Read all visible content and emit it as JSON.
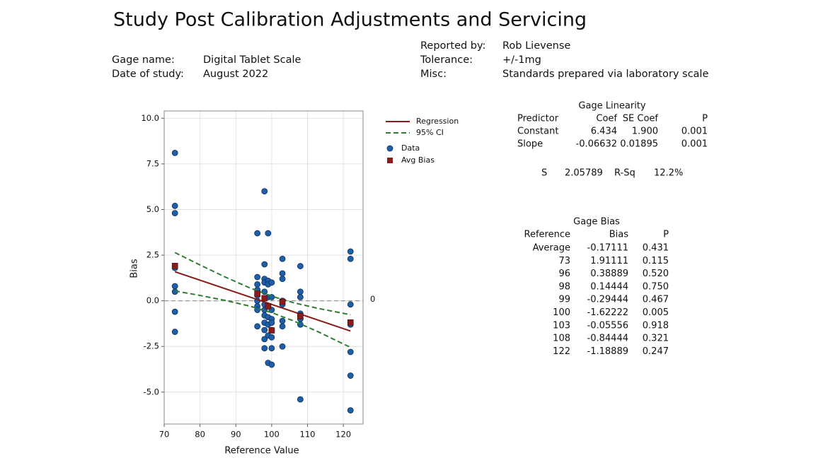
{
  "header": {
    "title": "Study Post Calibration Adjustments and Servicing",
    "fields": [
      {
        "label": "Gage name:",
        "value": "Digital Tablet Scale"
      },
      {
        "label": "Date of study:",
        "value": "August 2022"
      },
      {
        "label": "Reported by:",
        "value": "Rob Lievense"
      },
      {
        "label": "Tolerance:",
        "value": "+/-1mg"
      },
      {
        "label": "Misc:",
        "value": "Standards prepared via laboratory scale"
      }
    ]
  },
  "chart_data": {
    "type": "scatter",
    "x_label": "Reference Value",
    "y_label": "Bias",
    "xlim": [
      70,
      125.5
    ],
    "ylim": [
      -6.75,
      10.4
    ],
    "xticks": [
      70,
      80,
      90,
      100,
      110,
      120
    ],
    "yticks": [
      {
        "value": 10,
        "label": "10.0"
      },
      7.5,
      {
        "value": 5,
        "label": "5.0"
      },
      2.5,
      {
        "value": 0,
        "label": "0.0"
      },
      -2.5,
      {
        "value": -5,
        "label": "-5.0"
      }
    ],
    "grid": true,
    "legend": "right",
    "reference_line": 0,
    "series": [
      {
        "name": "Regression",
        "mark": "line",
        "color": "#8b1a1a",
        "x": [
          73,
          122
        ],
        "values": [
          1.593,
          -1.657
        ]
      },
      {
        "name": "95% CI",
        "mark": "dashed-band",
        "color": "#2e7d32",
        "x": [
          73,
          80,
          87,
          94,
          100,
          106,
          113,
          122
        ],
        "upper": [
          2.643,
          1.963,
          1.305,
          0.697,
          0.252,
          -0.099,
          -0.419,
          -0.763
        ],
        "lower": [
          0.543,
          0.293,
          0.023,
          -0.297,
          -0.648,
          -1.093,
          -1.701,
          -2.551
        ]
      },
      {
        "name": "Data",
        "mark": "circle",
        "color": "#1f5fa8",
        "x": [
          73,
          73,
          73,
          73,
          73,
          73,
          73,
          73,
          73,
          96,
          96,
          96,
          96,
          96,
          96,
          96,
          96,
          96,
          98,
          98,
          98,
          98,
          98,
          98,
          98,
          98,
          98,
          98,
          98,
          98,
          99,
          99,
          99,
          99,
          99,
          99,
          99,
          99,
          99,
          100,
          100,
          100,
          100,
          100,
          100,
          100,
          100,
          100,
          103,
          103,
          103,
          103,
          103,
          103,
          103,
          103,
          108,
          108,
          108,
          108,
          108,
          108,
          108,
          108,
          122,
          122,
          122,
          122,
          122,
          122,
          122,
          122
        ],
        "values": [
          8.1,
          5.2,
          4.8,
          1.9,
          1.8,
          0.8,
          0.5,
          -0.6,
          -1.7,
          3.7,
          1.3,
          0.9,
          0.6,
          0.3,
          0.0,
          -0.3,
          -0.5,
          -1.4,
          6.0,
          2.0,
          1.2,
          1.0,
          0.5,
          -0.2,
          -0.5,
          -0.8,
          -1.2,
          -1.6,
          -2.1,
          -2.6,
          3.7,
          1.1,
          0.9,
          0.2,
          -0.3,
          -0.9,
          -1.3,
          -1.9,
          -3.4,
          1.0,
          0.2,
          -0.5,
          -1.0,
          -1.2,
          -1.6,
          -2.0,
          -2.6,
          -3.5,
          2.3,
          1.5,
          1.2,
          0.0,
          -0.2,
          -1.1,
          -1.4,
          -2.5,
          1.9,
          0.5,
          0.2,
          -0.7,
          -0.8,
          -1.0,
          -1.3,
          -5.4,
          2.7,
          2.3,
          -0.2,
          -1.2,
          -1.3,
          -2.8,
          -4.1,
          -6.0
        ]
      },
      {
        "name": "Avg Bias",
        "mark": "square",
        "color": "#8b1a1a",
        "x": [
          73,
          96,
          98,
          99,
          100,
          103,
          108,
          122
        ],
        "values": [
          1.91111,
          0.38889,
          0.14444,
          -0.29444,
          -1.62222,
          -0.05556,
          -0.84444,
          -1.18889
        ]
      }
    ]
  },
  "gage_linearity": {
    "title": "Gage Linearity",
    "columns": [
      "Predictor",
      "Coef",
      "SE Coef",
      "P"
    ],
    "rows": [
      [
        "Constant",
        "6.434",
        "1.900",
        "0.001"
      ],
      [
        "Slope",
        "-0.06632",
        "0.01895",
        "0.001"
      ]
    ],
    "summary": [
      "S",
      "2.05789",
      "R-Sq",
      "12.2%"
    ]
  },
  "gage_bias": {
    "title": "Gage Bias",
    "columns": [
      "Reference",
      "Bias",
      "P"
    ],
    "rows": [
      [
        "Average",
        "-0.17111",
        "0.431"
      ],
      [
        "73",
        "1.91111",
        "0.115"
      ],
      [
        "96",
        "0.38889",
        "0.520"
      ],
      [
        "98",
        "0.14444",
        "0.750"
      ],
      [
        "99",
        "-0.29444",
        "0.467"
      ],
      [
        "100",
        "-1.62222",
        "0.005"
      ],
      [
        "103",
        "-0.05556",
        "0.918"
      ],
      [
        "108",
        "-0.84444",
        "0.321"
      ],
      [
        "122",
        "-1.18889",
        "0.247"
      ]
    ]
  }
}
